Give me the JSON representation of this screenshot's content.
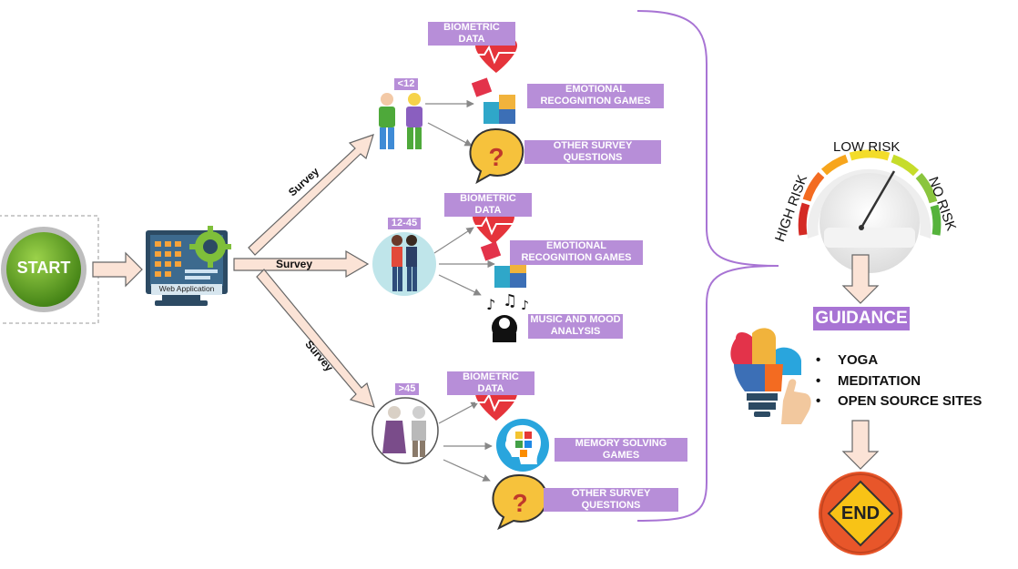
{
  "start_label": "START",
  "web_app_label": "Web Application",
  "survey_label": "Survey",
  "branches": [
    {
      "age_group": "<12",
      "items": [
        "BIOMETRIC DATA",
        "EMOTIONAL RECOGNITION GAMES",
        "OTHER SURVEY QUESTIONS"
      ]
    },
    {
      "age_group": "12-45",
      "items": [
        "BIOMETRIC DATA",
        "EMOTIONAL RECOGNITION GAMES",
        "MUSIC AND MOOD ANALYSIS"
      ]
    },
    {
      "age_group": ">45",
      "items": [
        "BIOMETRIC DATA",
        "MEMORY SOLVING GAMES",
        "OTHER SURVEY QUESTIONS"
      ]
    }
  ],
  "gauge": {
    "low": "LOW RISK",
    "high": "HIGH RISK",
    "none": "NO RISK"
  },
  "guidance_label": "GUIDANCE",
  "guidance_items": [
    "YOGA",
    "MEDITATION",
    "OPEN SOURCE SITES"
  ],
  "end_label": "END",
  "colors": {
    "accent": "#b78ed8",
    "start_green": "#5a9e1e",
    "end_orange": "#e8562a",
    "arrow_fill": "#fbe3d6"
  }
}
